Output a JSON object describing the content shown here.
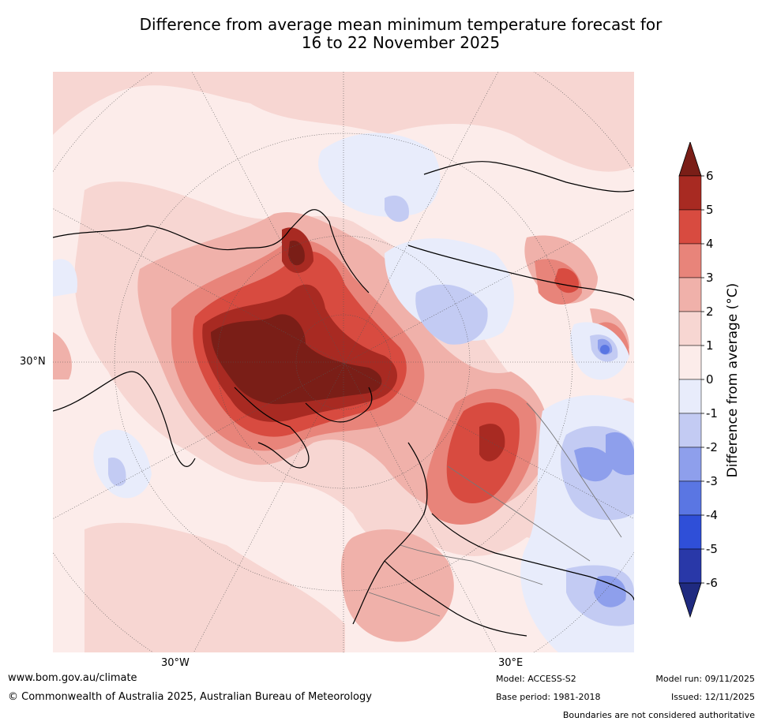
{
  "title": {
    "line1": "Difference from average mean minimum temperature forecast for",
    "line2": "16 to 22 November 2025"
  },
  "map": {
    "lat_label": "30°N",
    "lon_labels": {
      "west": "30°W",
      "east": "30°E"
    }
  },
  "colorbar": {
    "label": "Difference from average (°C)",
    "ticks": [
      "6",
      "5",
      "4",
      "3",
      "2",
      "1",
      "0",
      "-1",
      "-2",
      "-3",
      "-4",
      "-5",
      "-6"
    ],
    "colors": {
      "over": "#7a1e17",
      "bins": [
        "#a82a22",
        "#d84b40",
        "#e8847a",
        "#f0b1aa",
        "#f7d6d2",
        "#fcecea",
        "#e8ecfb",
        "#c3cbf3",
        "#8e9fec",
        "#5a76e3",
        "#2f4fd8",
        "#2938a8"
      ],
      "under": "#1f2a80"
    }
  },
  "footer": {
    "website": "www.bom.gov.au/climate",
    "copyright": "© Commonwealth of Australia 2025, Australian Bureau of Meteorology",
    "model": "Model: ACCESS-S2",
    "base_period": "Base period: 1981-2018",
    "model_run": "Model run: 09/11/2025",
    "issued": "Issued: 12/11/2025",
    "disclaimer": "Boundaries are not considered authoritative"
  }
}
